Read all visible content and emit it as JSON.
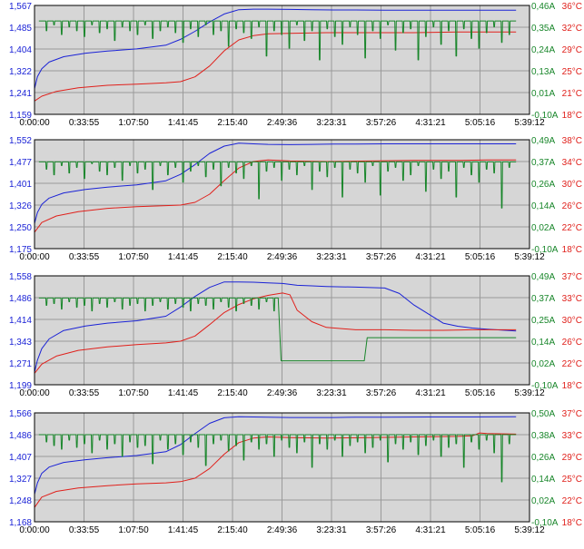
{
  "colors": {
    "voltage": "#1a22d6",
    "current": "#18862a",
    "temperature": "#e0201b",
    "plot_bg": "#d6d6d6",
    "grid": "#9a9a9a",
    "tick_text": "#000000"
  },
  "chart_data": [
    {
      "type": "line",
      "x_tick_labels": [
        "0:00:00",
        "0:33:55",
        "1:07:50",
        "1:41:45",
        "2:15:40",
        "2:49:36",
        "3:23:31",
        "3:57:26",
        "4:31:21",
        "5:05:16",
        "5:39:12"
      ],
      "xlim_min": [
        0,
        339.2
      ],
      "y_left_ticks": [
        "1,567",
        "1,485",
        "1,404",
        "1,322",
        "1,241",
        "1,159"
      ],
      "y_right_current_ticks": [
        "0,46A",
        "0,35A",
        "0,24A",
        "0,13A",
        "0,01A",
        "-0,10A"
      ],
      "y_right_temp_ticks": [
        "36°C",
        "32°C",
        "29°C",
        "25°C",
        "21°C",
        "18°C"
      ],
      "ylim_voltage": [
        1.159,
        1.567
      ],
      "ylim_current": [
        -0.1,
        0.46
      ],
      "ylim_temp": [
        18,
        36
      ],
      "series": [
        {
          "color_key": "voltage",
          "axis": "voltage",
          "x": [
            0,
            2,
            5,
            10,
            20,
            35,
            50,
            70,
            90,
            100,
            110,
            120,
            130,
            140,
            150,
            160,
            175,
            190,
            205,
            220,
            240,
            270,
            300,
            330
          ],
          "y": [
            1.255,
            1.3,
            1.33,
            1.355,
            1.375,
            1.388,
            1.396,
            1.404,
            1.418,
            1.44,
            1.47,
            1.505,
            1.535,
            1.551,
            1.553,
            1.553,
            1.552,
            1.551,
            1.55,
            1.55,
            1.549,
            1.549,
            1.549,
            1.549
          ]
        },
        {
          "color_key": "temperature",
          "axis": "temp",
          "x": [
            0,
            5,
            15,
            30,
            50,
            70,
            90,
            100,
            110,
            120,
            130,
            140,
            150,
            160,
            175,
            200,
            230,
            260,
            290,
            310,
            330
          ],
          "y": [
            20.2,
            21.0,
            21.8,
            22.4,
            22.8,
            23.0,
            23.2,
            23.4,
            24.2,
            26.0,
            28.5,
            30.3,
            31.0,
            31.3,
            31.4,
            31.5,
            31.5,
            31.5,
            31.6,
            31.6,
            31.6
          ]
        },
        {
          "color_key": "current",
          "axis": "current",
          "pattern": "pulse",
          "x_start": 3,
          "x_end": 330,
          "high": 0.38,
          "period": 5.2,
          "dips": [
            0.33,
            0.36,
            0.31,
            0.35,
            0.33,
            0.3,
            0.36,
            0.32,
            0.34,
            0.28,
            0.35,
            0.33,
            0.31,
            0.36,
            0.29,
            0.33,
            0.35,
            0.32,
            0.27,
            0.34,
            0.3,
            0.36,
            0.31,
            0.33,
            0.25,
            0.34,
            0.32,
            0.29,
            0.35,
            0.2,
            0.33,
            0.31,
            0.24,
            0.36,
            0.28,
            0.33,
            0.18,
            0.34,
            0.3,
            0.26,
            0.35,
            0.31,
            0.19,
            0.33,
            0.29,
            0.36,
            0.23,
            0.32,
            0.34,
            0.18,
            0.3,
            0.35,
            0.26,
            0.33,
            0.2,
            0.34,
            0.29,
            0.24,
            0.32,
            0.35,
            0.27,
            0.31,
            0.33
          ]
        }
      ]
    },
    {
      "type": "line",
      "x_tick_labels": [
        "0:00:00",
        "0:33:55",
        "1:07:50",
        "1:41:45",
        "2:15:40",
        "2:49:36",
        "3:23:31",
        "3:57:26",
        "4:31:21",
        "5:05:16",
        "5:39:12"
      ],
      "xlim_min": [
        0,
        339.2
      ],
      "y_left_ticks": [
        "1,552",
        "1,477",
        "1,401",
        "1,326",
        "1,250",
        "1,175"
      ],
      "y_right_current_ticks": [
        "0,49A",
        "0,37A",
        "0,26A",
        "0,14A",
        "0,02A",
        "-0,10A"
      ],
      "y_right_temp_ticks": [
        "38°C",
        "34°C",
        "30°C",
        "26°C",
        "22°C",
        "18°C"
      ],
      "ylim_voltage": [
        1.175,
        1.552
      ],
      "ylim_current": [
        -0.1,
        0.49
      ],
      "ylim_temp": [
        18,
        38
      ],
      "series": [
        {
          "color_key": "voltage",
          "axis": "voltage",
          "x": [
            0,
            2,
            5,
            10,
            20,
            35,
            50,
            70,
            90,
            100,
            110,
            120,
            130,
            140,
            150,
            160,
            175,
            190,
            205,
            220,
            240,
            270,
            300,
            330
          ],
          "y": [
            1.262,
            1.3,
            1.328,
            1.35,
            1.368,
            1.38,
            1.388,
            1.396,
            1.41,
            1.432,
            1.466,
            1.505,
            1.53,
            1.54,
            1.538,
            1.536,
            1.535,
            1.536,
            1.537,
            1.537,
            1.538,
            1.538,
            1.538,
            1.538
          ]
        },
        {
          "color_key": "temperature",
          "axis": "temp",
          "x": [
            0,
            5,
            15,
            30,
            50,
            70,
            90,
            100,
            110,
            120,
            130,
            140,
            150,
            160,
            175,
            200,
            230,
            260,
            290,
            310,
            330
          ],
          "y": [
            21.0,
            22.8,
            24.0,
            24.8,
            25.4,
            25.7,
            25.9,
            26.0,
            26.5,
            28.0,
            30.5,
            32.8,
            34.0,
            34.3,
            34.1,
            34.0,
            34.1,
            34.2,
            34.2,
            34.3,
            34.3
          ]
        },
        {
          "color_key": "current",
          "axis": "current",
          "pattern": "pulse",
          "x_start": 3,
          "x_end": 330,
          "high": 0.37,
          "period": 5.2,
          "dips": [
            0.33,
            0.3,
            0.35,
            0.31,
            0.34,
            0.28,
            0.36,
            0.32,
            0.3,
            0.34,
            0.27,
            0.35,
            0.31,
            0.33,
            0.22,
            0.35,
            0.3,
            0.34,
            0.26,
            0.32,
            0.35,
            0.29,
            0.33,
            0.24,
            0.34,
            0.31,
            0.28,
            0.35,
            0.17,
            0.32,
            0.34,
            0.27,
            0.33,
            0.3,
            0.35,
            0.22,
            0.32,
            0.29,
            0.34,
            0.18,
            0.33,
            0.31,
            0.26,
            0.35,
            0.19,
            0.32,
            0.34,
            0.27,
            0.3,
            0.35,
            0.21,
            0.33,
            0.28,
            0.32,
            0.18,
            0.34,
            0.3,
            0.26,
            0.33,
            0.31,
            0.12,
            0.34,
            0.3
          ]
        }
      ]
    },
    {
      "type": "line",
      "x_tick_labels": [
        "0:00:00",
        "0:33:55",
        "1:07:50",
        "1:41:45",
        "2:15:40",
        "2:49:36",
        "3:23:31",
        "3:57:26",
        "4:31:21",
        "5:05:16",
        "5:39:12"
      ],
      "xlim_min": [
        0,
        339.2
      ],
      "y_left_ticks": [
        "1,558",
        "1,486",
        "1,414",
        "1,343",
        "1,271",
        "1,199"
      ],
      "y_right_current_ticks": [
        "0,49A",
        "0,37A",
        "0,25A",
        "0,14A",
        "0,02A",
        "-0,10A"
      ],
      "y_right_temp_ticks": [
        "37°C",
        "33°C",
        "30°C",
        "26°C",
        "22°C",
        "18°C"
      ],
      "ylim_voltage": [
        1.199,
        1.558
      ],
      "ylim_current": [
        -0.1,
        0.49
      ],
      "ylim_temp": [
        18,
        37
      ],
      "series": [
        {
          "color_key": "voltage",
          "axis": "voltage",
          "x": [
            0,
            2,
            5,
            10,
            20,
            35,
            50,
            70,
            90,
            100,
            110,
            120,
            130,
            140,
            150,
            160,
            170,
            175,
            180,
            190,
            200,
            220,
            240,
            250,
            260,
            270,
            280,
            290,
            300,
            310,
            320,
            330
          ],
          "y": [
            1.24,
            1.28,
            1.318,
            1.35,
            1.378,
            1.393,
            1.402,
            1.41,
            1.425,
            1.455,
            1.49,
            1.52,
            1.538,
            1.538,
            1.537,
            1.535,
            1.533,
            1.53,
            1.527,
            1.525,
            1.523,
            1.521,
            1.518,
            1.5,
            1.462,
            1.432,
            1.402,
            1.392,
            1.386,
            1.382,
            1.379,
            1.376
          ]
        },
        {
          "color_key": "temperature",
          "axis": "temp",
          "x": [
            0,
            5,
            15,
            30,
            50,
            70,
            90,
            100,
            110,
            120,
            130,
            140,
            150,
            160,
            170,
            175,
            180,
            190,
            200,
            220,
            240,
            260,
            270,
            280,
            300,
            330
          ],
          "y": [
            20.0,
            21.6,
            23.0,
            24.0,
            24.6,
            25.0,
            25.3,
            25.6,
            26.5,
            28.5,
            30.6,
            32.0,
            33.0,
            33.6,
            34.0,
            33.7,
            31.0,
            29.0,
            28.0,
            27.6,
            27.6,
            27.5,
            27.5,
            27.5,
            27.6,
            27.6
          ]
        },
        {
          "color_key": "current",
          "axis": "current",
          "pattern": "pulse_then_idle",
          "x_start": 3,
          "x_end": 330,
          "high": 0.37,
          "period": 5.2,
          "pulse_until": 167,
          "idle_segments": [
            {
              "x": [
                167,
                169
              ],
              "y": [
                0.37,
                0.03
              ]
            },
            {
              "x": [
                169,
                226
              ],
              "y": [
                0.03,
                0.03
              ]
            },
            {
              "x": [
                226,
                228
              ],
              "y": [
                0.03,
                0.155
              ]
            },
            {
              "x": [
                228,
                330
              ],
              "y": [
                0.155,
                0.155
              ]
            }
          ],
          "dips": [
            0.33,
            0.34,
            0.31,
            0.35,
            0.32,
            0.33,
            0.3,
            0.34,
            0.32,
            0.35,
            0.31,
            0.33,
            0.34,
            0.3,
            0.33,
            0.35,
            0.31,
            0.34,
            0.32,
            0.3,
            0.34,
            0.33,
            0.31,
            0.35,
            0.32,
            0.3,
            0.34,
            0.33,
            0.31,
            0.35,
            0.3,
            0.32
          ]
        }
      ]
    },
    {
      "type": "line",
      "x_tick_labels": [
        "0:00:00",
        "0:33:55",
        "1:07:50",
        "1:41:45",
        "2:15:40",
        "2:49:36",
        "3:23:31",
        "3:57:26",
        "4:31:21",
        "5:05:16",
        "5:39:12"
      ],
      "xlim_min": [
        0,
        339.2
      ],
      "y_left_ticks": [
        "1,566",
        "1,486",
        "1,407",
        "1,327",
        "1,248",
        "1,168"
      ],
      "y_right_current_ticks": [
        "0,50A",
        "0,38A",
        "0,26A",
        "0,14A",
        "0,02A",
        "-0,10A"
      ],
      "y_right_temp_ticks": [
        "37°C",
        "33°C",
        "29°C",
        "25°C",
        "22°C",
        "18°C"
      ],
      "ylim_voltage": [
        1.168,
        1.566
      ],
      "ylim_current": [
        -0.1,
        0.5
      ],
      "ylim_temp": [
        18,
        37
      ],
      "series": [
        {
          "color_key": "voltage",
          "axis": "voltage",
          "x": [
            0,
            2,
            5,
            10,
            20,
            35,
            50,
            70,
            90,
            100,
            110,
            120,
            130,
            140,
            150,
            160,
            175,
            190,
            205,
            220,
            240,
            270,
            300,
            330
          ],
          "y": [
            1.268,
            1.31,
            1.345,
            1.368,
            1.385,
            1.395,
            1.402,
            1.41,
            1.424,
            1.45,
            1.49,
            1.528,
            1.548,
            1.552,
            1.551,
            1.55,
            1.549,
            1.549,
            1.549,
            1.55,
            1.55,
            1.551,
            1.551,
            1.552
          ]
        },
        {
          "color_key": "temperature",
          "axis": "temp",
          "x": [
            0,
            5,
            15,
            30,
            50,
            70,
            90,
            100,
            110,
            120,
            130,
            140,
            150,
            160,
            175,
            200,
            230,
            260,
            290,
            300,
            305,
            310,
            330
          ],
          "y": [
            20.5,
            22.3,
            23.3,
            23.9,
            24.3,
            24.6,
            24.8,
            25.0,
            25.6,
            27.3,
            29.8,
            31.8,
            32.6,
            32.8,
            32.7,
            32.6,
            32.7,
            32.8,
            32.9,
            33.0,
            33.5,
            33.4,
            33.3
          ]
        },
        {
          "color_key": "current",
          "axis": "current",
          "pattern": "pulse",
          "x_start": 3,
          "x_end": 330,
          "high": 0.38,
          "period": 5.2,
          "dips": [
            0.34,
            0.32,
            0.3,
            0.35,
            0.31,
            0.33,
            0.28,
            0.35,
            0.3,
            0.33,
            0.26,
            0.34,
            0.31,
            0.32,
            0.22,
            0.35,
            0.3,
            0.33,
            0.27,
            0.34,
            0.31,
            0.21,
            0.33,
            0.35,
            0.29,
            0.32,
            0.24,
            0.34,
            0.3,
            0.33,
            0.26,
            0.35,
            0.31,
            0.28,
            0.34,
            0.2,
            0.33,
            0.3,
            0.35,
            0.26,
            0.32,
            0.34,
            0.28,
            0.31,
            0.35,
            0.23,
            0.33,
            0.3,
            0.34,
            0.27,
            0.32,
            0.35,
            0.26,
            0.31,
            0.33,
            0.2,
            0.34,
            0.3,
            0.35,
            0.28,
            0.12,
            0.33,
            0.31
          ]
        }
      ]
    }
  ]
}
